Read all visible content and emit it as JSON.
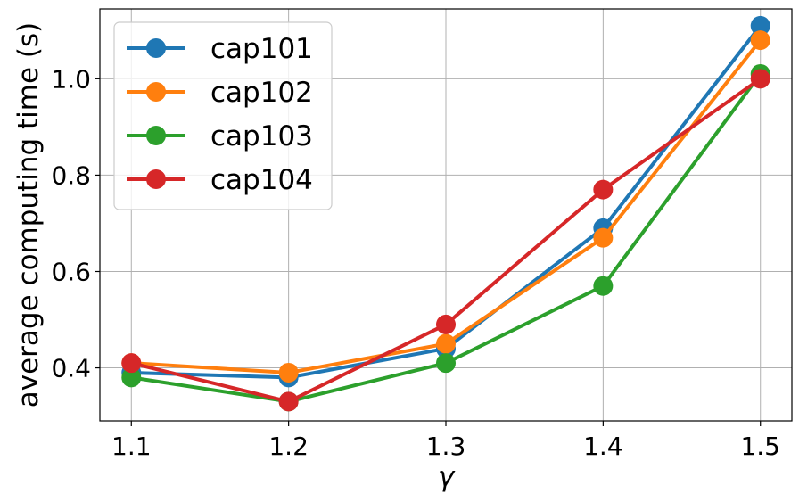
{
  "chart_data": {
    "type": "line",
    "xlabel": "γ",
    "ylabel": "average computing time (s)",
    "x": [
      1.1,
      1.2,
      1.3,
      1.4,
      1.5
    ],
    "x_ticks": [
      "1.1",
      "1.2",
      "1.3",
      "1.4",
      "1.5"
    ],
    "y_ticks": [
      "0.4",
      "0.6",
      "0.8",
      "1.0"
    ],
    "y_tick_values": [
      0.4,
      0.6,
      0.8,
      1.0
    ],
    "xlim": [
      1.08,
      1.52
    ],
    "ylim": [
      0.29,
      1.145
    ],
    "grid": true,
    "legend_position": "upper-left",
    "series": [
      {
        "name": "cap101",
        "color": "#1f77b4",
        "values": [
          0.39,
          0.38,
          0.44,
          0.69,
          1.11
        ]
      },
      {
        "name": "cap102",
        "color": "#ff7f0e",
        "values": [
          0.41,
          0.39,
          0.45,
          0.67,
          1.08
        ]
      },
      {
        "name": "cap103",
        "color": "#2ca02c",
        "values": [
          0.38,
          0.33,
          0.41,
          0.57,
          1.01
        ]
      },
      {
        "name": "cap104",
        "color": "#d62728",
        "values": [
          0.41,
          0.33,
          0.49,
          0.77,
          1.0
        ]
      }
    ]
  }
}
